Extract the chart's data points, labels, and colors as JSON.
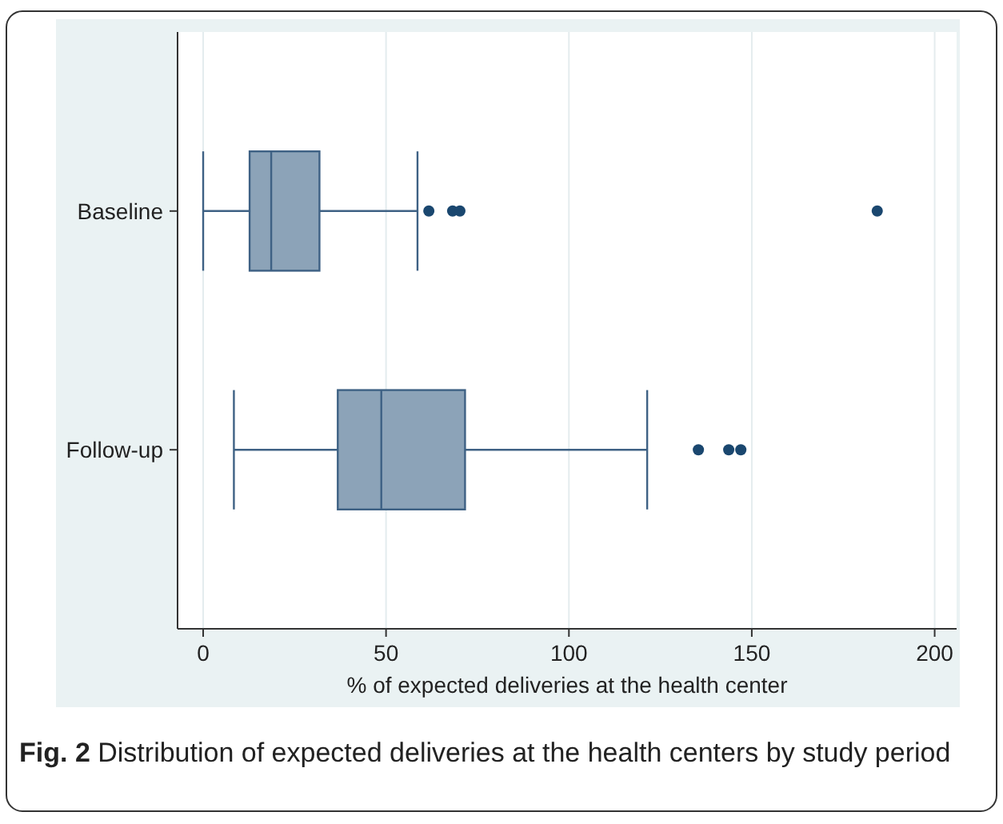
{
  "chart_data": {
    "type": "box",
    "orientation": "horizontal",
    "categories": [
      "Baseline",
      "Follow-up"
    ],
    "boxes": [
      {
        "low": 0,
        "q1": 12.7,
        "median": 18.6,
        "q3": 31.8,
        "high": 58.6,
        "outliers": [
          61.7,
          68.2,
          70.2,
          184.3
        ]
      },
      {
        "low": 8.4,
        "q1": 36.8,
        "median": 48.7,
        "q3": 71.6,
        "high": 121.4,
        "outliers": [
          135.4,
          143.7,
          147.0
        ]
      }
    ],
    "color": "#8ca3b8",
    "xlim": [
      -7,
      206
    ],
    "xticks": [
      0,
      50,
      100,
      150,
      200
    ],
    "xlabel": "% of expected deliveries at the health center",
    "grid": "x",
    "annotations": [
      "Fig. 2 Distribution of expected deliveries at the health centers by study period"
    ]
  }
}
